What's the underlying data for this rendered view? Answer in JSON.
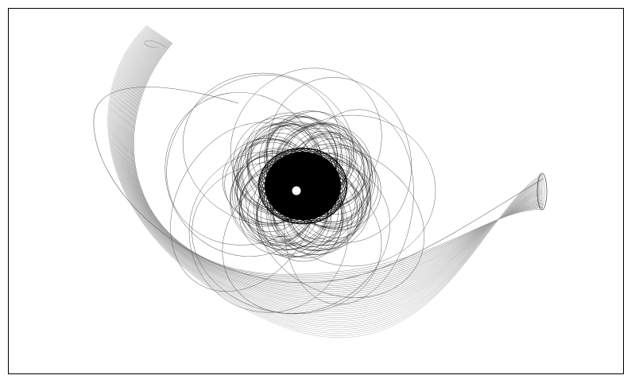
{
  "figure": {
    "background": "#ffffff",
    "frame_color": "#000000",
    "ticks_shown": false,
    "axis_labels_shown": false,
    "title_shown": false
  },
  "artwork": {
    "description": "",
    "elements": [
      {
        "name": "tail-ribbon",
        "color": "#b0b0b0",
        "style": "many thin grey curves sweeping from lower-left arc into a narrow tube ending in an ellipse at right"
      },
      {
        "name": "outer-loops",
        "color": "#555555",
        "style": "sparse large thin ellipses scattered around center"
      },
      {
        "name": "middle-ring",
        "color": "#111111",
        "style": "dense rosette of overlapping circles"
      },
      {
        "name": "inner-core",
        "color": "#000000",
        "style": "solid dense black disk"
      },
      {
        "name": "center-hole",
        "color": "#ffffff",
        "style": "small white dot at center"
      }
    ]
  }
}
